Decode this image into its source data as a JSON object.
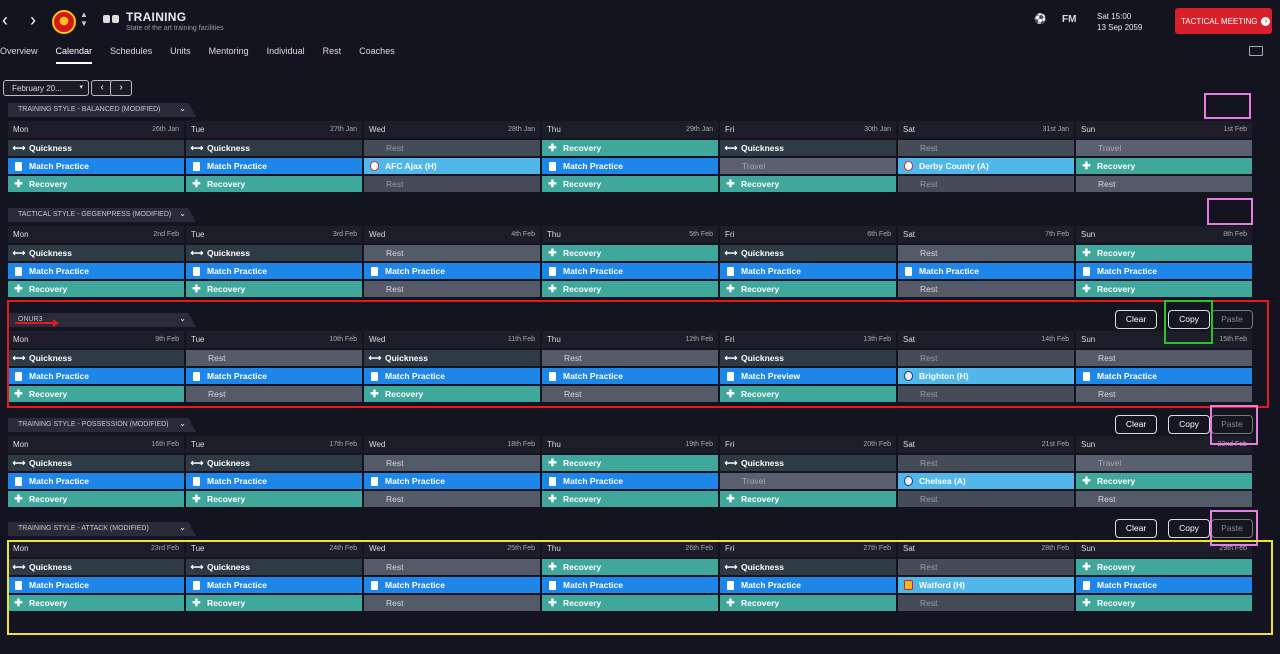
{
  "header": {
    "title": "TRAINING",
    "subtitle": "State of the art training facilities",
    "date_line1": "Sat 15:00",
    "date_line2": "13 Sep 2059",
    "fm_label": "FM",
    "tactical_meeting": "TACTICAL MEETING"
  },
  "tabs": [
    "Overview",
    "Calendar",
    "Schedules",
    "Units",
    "Mentoring",
    "Individual",
    "Rest",
    "Coaches"
  ],
  "active_tab": "Calendar",
  "month": {
    "label": "February 20...",
    "prev": "‹",
    "next": "›"
  },
  "buttons": {
    "clear": "Clear",
    "copy": "Copy",
    "paste": "Paste"
  },
  "weeks": [
    {
      "style": "TRAINING STYLE - BALANCED (MODIFIED)",
      "actions": false,
      "days": [
        {
          "name": "Mon",
          "date": "26th Jan",
          "sessions": [
            [
              "quick",
              "Quickness"
            ],
            [
              "match",
              "Match Practice"
            ],
            [
              "rec",
              "Recovery"
            ]
          ]
        },
        {
          "name": "Tue",
          "date": "27th Jan",
          "sessions": [
            [
              "quick",
              "Quickness"
            ],
            [
              "match",
              "Match Practice"
            ],
            [
              "rec",
              "Recovery"
            ]
          ]
        },
        {
          "name": "Wed",
          "date": "28th Jan",
          "sessions": [
            [
              "restdim",
              "Rest"
            ],
            [
              "fixture",
              "AFC Ajax (H)"
            ],
            [
              "restdim",
              "Rest"
            ]
          ]
        },
        {
          "name": "Thu",
          "date": "29th Jan",
          "sessions": [
            [
              "rec",
              "Recovery"
            ],
            [
              "match",
              "Match Practice"
            ],
            [
              "rec",
              "Recovery"
            ]
          ]
        },
        {
          "name": "Fri",
          "date": "30th Jan",
          "sessions": [
            [
              "quick",
              "Quickness"
            ],
            [
              "travel",
              "Travel"
            ],
            [
              "rec",
              "Recovery"
            ]
          ]
        },
        {
          "name": "Sat",
          "date": "31st Jan",
          "sessions": [
            [
              "restdim",
              "Rest"
            ],
            [
              "fixture",
              "Derby County (A)"
            ],
            [
              "restdim",
              "Rest"
            ]
          ]
        },
        {
          "name": "Sun",
          "date": "1st Feb",
          "sessions": [
            [
              "travel",
              "Travel"
            ],
            [
              "rec",
              "Recovery"
            ],
            [
              "rest",
              "Rest"
            ]
          ]
        }
      ]
    },
    {
      "style": "TACTICAL STYLE - GEGENPRESS (MODIFIED)",
      "actions": false,
      "days": [
        {
          "name": "Mon",
          "date": "2nd Feb",
          "sessions": [
            [
              "quick",
              "Quickness"
            ],
            [
              "match",
              "Match Practice"
            ],
            [
              "rec",
              "Recovery"
            ]
          ]
        },
        {
          "name": "Tue",
          "date": "3rd Feb",
          "sessions": [
            [
              "quick",
              "Quickness"
            ],
            [
              "match",
              "Match Practice"
            ],
            [
              "rec",
              "Recovery"
            ]
          ]
        },
        {
          "name": "Wed",
          "date": "4th Feb",
          "sessions": [
            [
              "rest",
              "Rest"
            ],
            [
              "match",
              "Match Practice"
            ],
            [
              "rest",
              "Rest"
            ]
          ]
        },
        {
          "name": "Thu",
          "date": "5th Feb",
          "sessions": [
            [
              "rec",
              "Recovery"
            ],
            [
              "match",
              "Match Practice"
            ],
            [
              "rec",
              "Recovery"
            ]
          ]
        },
        {
          "name": "Fri",
          "date": "6th Feb",
          "sessions": [
            [
              "quick",
              "Quickness"
            ],
            [
              "match",
              "Match Practice"
            ],
            [
              "rec",
              "Recovery"
            ]
          ]
        },
        {
          "name": "Sat",
          "date": "7th Feb",
          "sessions": [
            [
              "rest",
              "Rest"
            ],
            [
              "match",
              "Match Practice"
            ],
            [
              "rest",
              "Rest"
            ]
          ]
        },
        {
          "name": "Sun",
          "date": "8th Feb",
          "sessions": [
            [
              "rec",
              "Recovery"
            ],
            [
              "match",
              "Match Practice"
            ],
            [
              "rec",
              "Recovery"
            ]
          ]
        }
      ]
    },
    {
      "style": "ONUR3",
      "actions": true,
      "days": [
        {
          "name": "Mon",
          "date": "9th Feb",
          "sessions": [
            [
              "quick",
              "Quickness"
            ],
            [
              "match",
              "Match Practice"
            ],
            [
              "rec",
              "Recovery"
            ]
          ]
        },
        {
          "name": "Tue",
          "date": "10th Feb",
          "sessions": [
            [
              "rest",
              "Rest"
            ],
            [
              "match",
              "Match Practice"
            ],
            [
              "rest",
              "Rest"
            ]
          ]
        },
        {
          "name": "Wed",
          "date": "11th Feb",
          "sessions": [
            [
              "quick",
              "Quickness"
            ],
            [
              "match",
              "Match Practice"
            ],
            [
              "rec",
              "Recovery"
            ]
          ]
        },
        {
          "name": "Thu",
          "date": "12th Feb",
          "sessions": [
            [
              "rest",
              "Rest"
            ],
            [
              "match",
              "Match Practice"
            ],
            [
              "rest",
              "Rest"
            ]
          ]
        },
        {
          "name": "Fri",
          "date": "13th Feb",
          "sessions": [
            [
              "quick",
              "Quickness"
            ],
            [
              "preview",
              "Match Preview"
            ],
            [
              "rec",
              "Recovery"
            ]
          ]
        },
        {
          "name": "Sat",
          "date": "14th Feb",
          "sessions": [
            [
              "restdim",
              "Rest"
            ],
            [
              "fixture",
              "Brighton (H)"
            ],
            [
              "restdim",
              "Rest"
            ]
          ]
        },
        {
          "name": "Sun",
          "date": "15th Feb",
          "sessions": [
            [
              "rest",
              "Rest"
            ],
            [
              "match",
              "Match Practice"
            ],
            [
              "rest",
              "Rest"
            ]
          ]
        }
      ]
    },
    {
      "style": "TRAINING STYLE - POSSESSION (MODIFIED)",
      "actions": true,
      "days": [
        {
          "name": "Mon",
          "date": "16th Feb",
          "sessions": [
            [
              "quick",
              "Quickness"
            ],
            [
              "match",
              "Match Practice"
            ],
            [
              "rec",
              "Recovery"
            ]
          ]
        },
        {
          "name": "Tue",
          "date": "17th Feb",
          "sessions": [
            [
              "quick",
              "Quickness"
            ],
            [
              "match",
              "Match Practice"
            ],
            [
              "rec",
              "Recovery"
            ]
          ]
        },
        {
          "name": "Wed",
          "date": "18th Feb",
          "sessions": [
            [
              "rest",
              "Rest"
            ],
            [
              "match",
              "Match Practice"
            ],
            [
              "rest",
              "Rest"
            ]
          ]
        },
        {
          "name": "Thu",
          "date": "19th Feb",
          "sessions": [
            [
              "rec",
              "Recovery"
            ],
            [
              "match",
              "Match Practice"
            ],
            [
              "rec",
              "Recovery"
            ]
          ]
        },
        {
          "name": "Fri",
          "date": "20th Feb",
          "sessions": [
            [
              "quick",
              "Quickness"
            ],
            [
              "travel",
              "Travel"
            ],
            [
              "rec",
              "Recovery"
            ]
          ]
        },
        {
          "name": "Sat",
          "date": "21st Feb",
          "sessions": [
            [
              "restdim",
              "Rest"
            ],
            [
              "fixture",
              "Chelsea (A)"
            ],
            [
              "restdim",
              "Rest"
            ]
          ]
        },
        {
          "name": "Sun",
          "date": "22nd Feb",
          "sessions": [
            [
              "travel",
              "Travel"
            ],
            [
              "rec",
              "Recovery"
            ],
            [
              "rest",
              "Rest"
            ]
          ]
        }
      ]
    },
    {
      "style": "TRAINING STYLE - ATTACK (MODIFIED)",
      "actions": true,
      "days": [
        {
          "name": "Mon",
          "date": "23rd Feb",
          "sessions": [
            [
              "quick",
              "Quickness"
            ],
            [
              "match",
              "Match Practice"
            ],
            [
              "rec",
              "Recovery"
            ]
          ]
        },
        {
          "name": "Tue",
          "date": "24th Feb",
          "sessions": [
            [
              "quick",
              "Quickness"
            ],
            [
              "match",
              "Match Practice"
            ],
            [
              "rec",
              "Recovery"
            ]
          ]
        },
        {
          "name": "Wed",
          "date": "25th Feb",
          "sessions": [
            [
              "rest",
              "Rest"
            ],
            [
              "match",
              "Match Practice"
            ],
            [
              "rest",
              "Rest"
            ]
          ]
        },
        {
          "name": "Thu",
          "date": "26th Feb",
          "sessions": [
            [
              "rec",
              "Recovery"
            ],
            [
              "match",
              "Match Practice"
            ],
            [
              "rec",
              "Recovery"
            ]
          ]
        },
        {
          "name": "Fri",
          "date": "27th Feb",
          "sessions": [
            [
              "quick",
              "Quickness"
            ],
            [
              "match",
              "Match Practice"
            ],
            [
              "rec",
              "Recovery"
            ]
          ]
        },
        {
          "name": "Sat",
          "date": "28th Feb",
          "sessions": [
            [
              "restdim",
              "Rest"
            ],
            [
              "fixture",
              "Watford (H)"
            ],
            [
              "restdim",
              "Rest"
            ]
          ]
        },
        {
          "name": "Sun",
          "date": "29th Feb",
          "sessions": [
            [
              "rec",
              "Recovery"
            ],
            [
              "match",
              "Match Practice"
            ],
            [
              "rec",
              "Recovery"
            ]
          ]
        }
      ]
    }
  ]
}
